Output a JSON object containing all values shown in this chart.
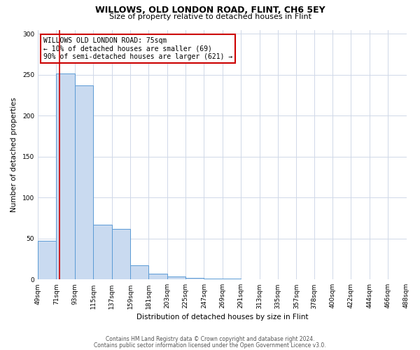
{
  "title1": "WILLOWS, OLD LONDON ROAD, FLINT, CH6 5EY",
  "title2": "Size of property relative to detached houses in Flint",
  "xlabel": "Distribution of detached houses by size in Flint",
  "ylabel": "Number of detached properties",
  "bin_edges": [
    49,
    71,
    93,
    115,
    137,
    159,
    181,
    203,
    225,
    247,
    269,
    291,
    313,
    335,
    357,
    378,
    400,
    422,
    444,
    466,
    488
  ],
  "bar_heights": [
    47,
    252,
    237,
    67,
    62,
    17,
    7,
    4,
    2,
    1,
    1,
    0,
    0,
    0,
    0,
    0,
    0,
    0,
    0,
    0
  ],
  "bar_color": "#c9daf0",
  "bar_edge_color": "#5b9bd5",
  "ylim": [
    0,
    305
  ],
  "yticks": [
    0,
    50,
    100,
    150,
    200,
    250,
    300
  ],
  "property_line_x": 75,
  "property_line_color": "#cc0000",
  "annotation_text": "WILLOWS OLD LONDON ROAD: 75sqm\n← 10% of detached houses are smaller (69)\n90% of semi-detached houses are larger (621) →",
  "annotation_box_color": "#cc0000",
  "footer1": "Contains HM Land Registry data © Crown copyright and database right 2024.",
  "footer2": "Contains public sector information licensed under the Open Government Licence v3.0.",
  "background_color": "#ffffff",
  "grid_color": "#d0d8e8",
  "title1_fontsize": 9,
  "title2_fontsize": 8,
  "axis_label_fontsize": 7.5,
  "tick_fontsize": 6.5,
  "annotation_fontsize": 7,
  "footer_fontsize": 5.5
}
